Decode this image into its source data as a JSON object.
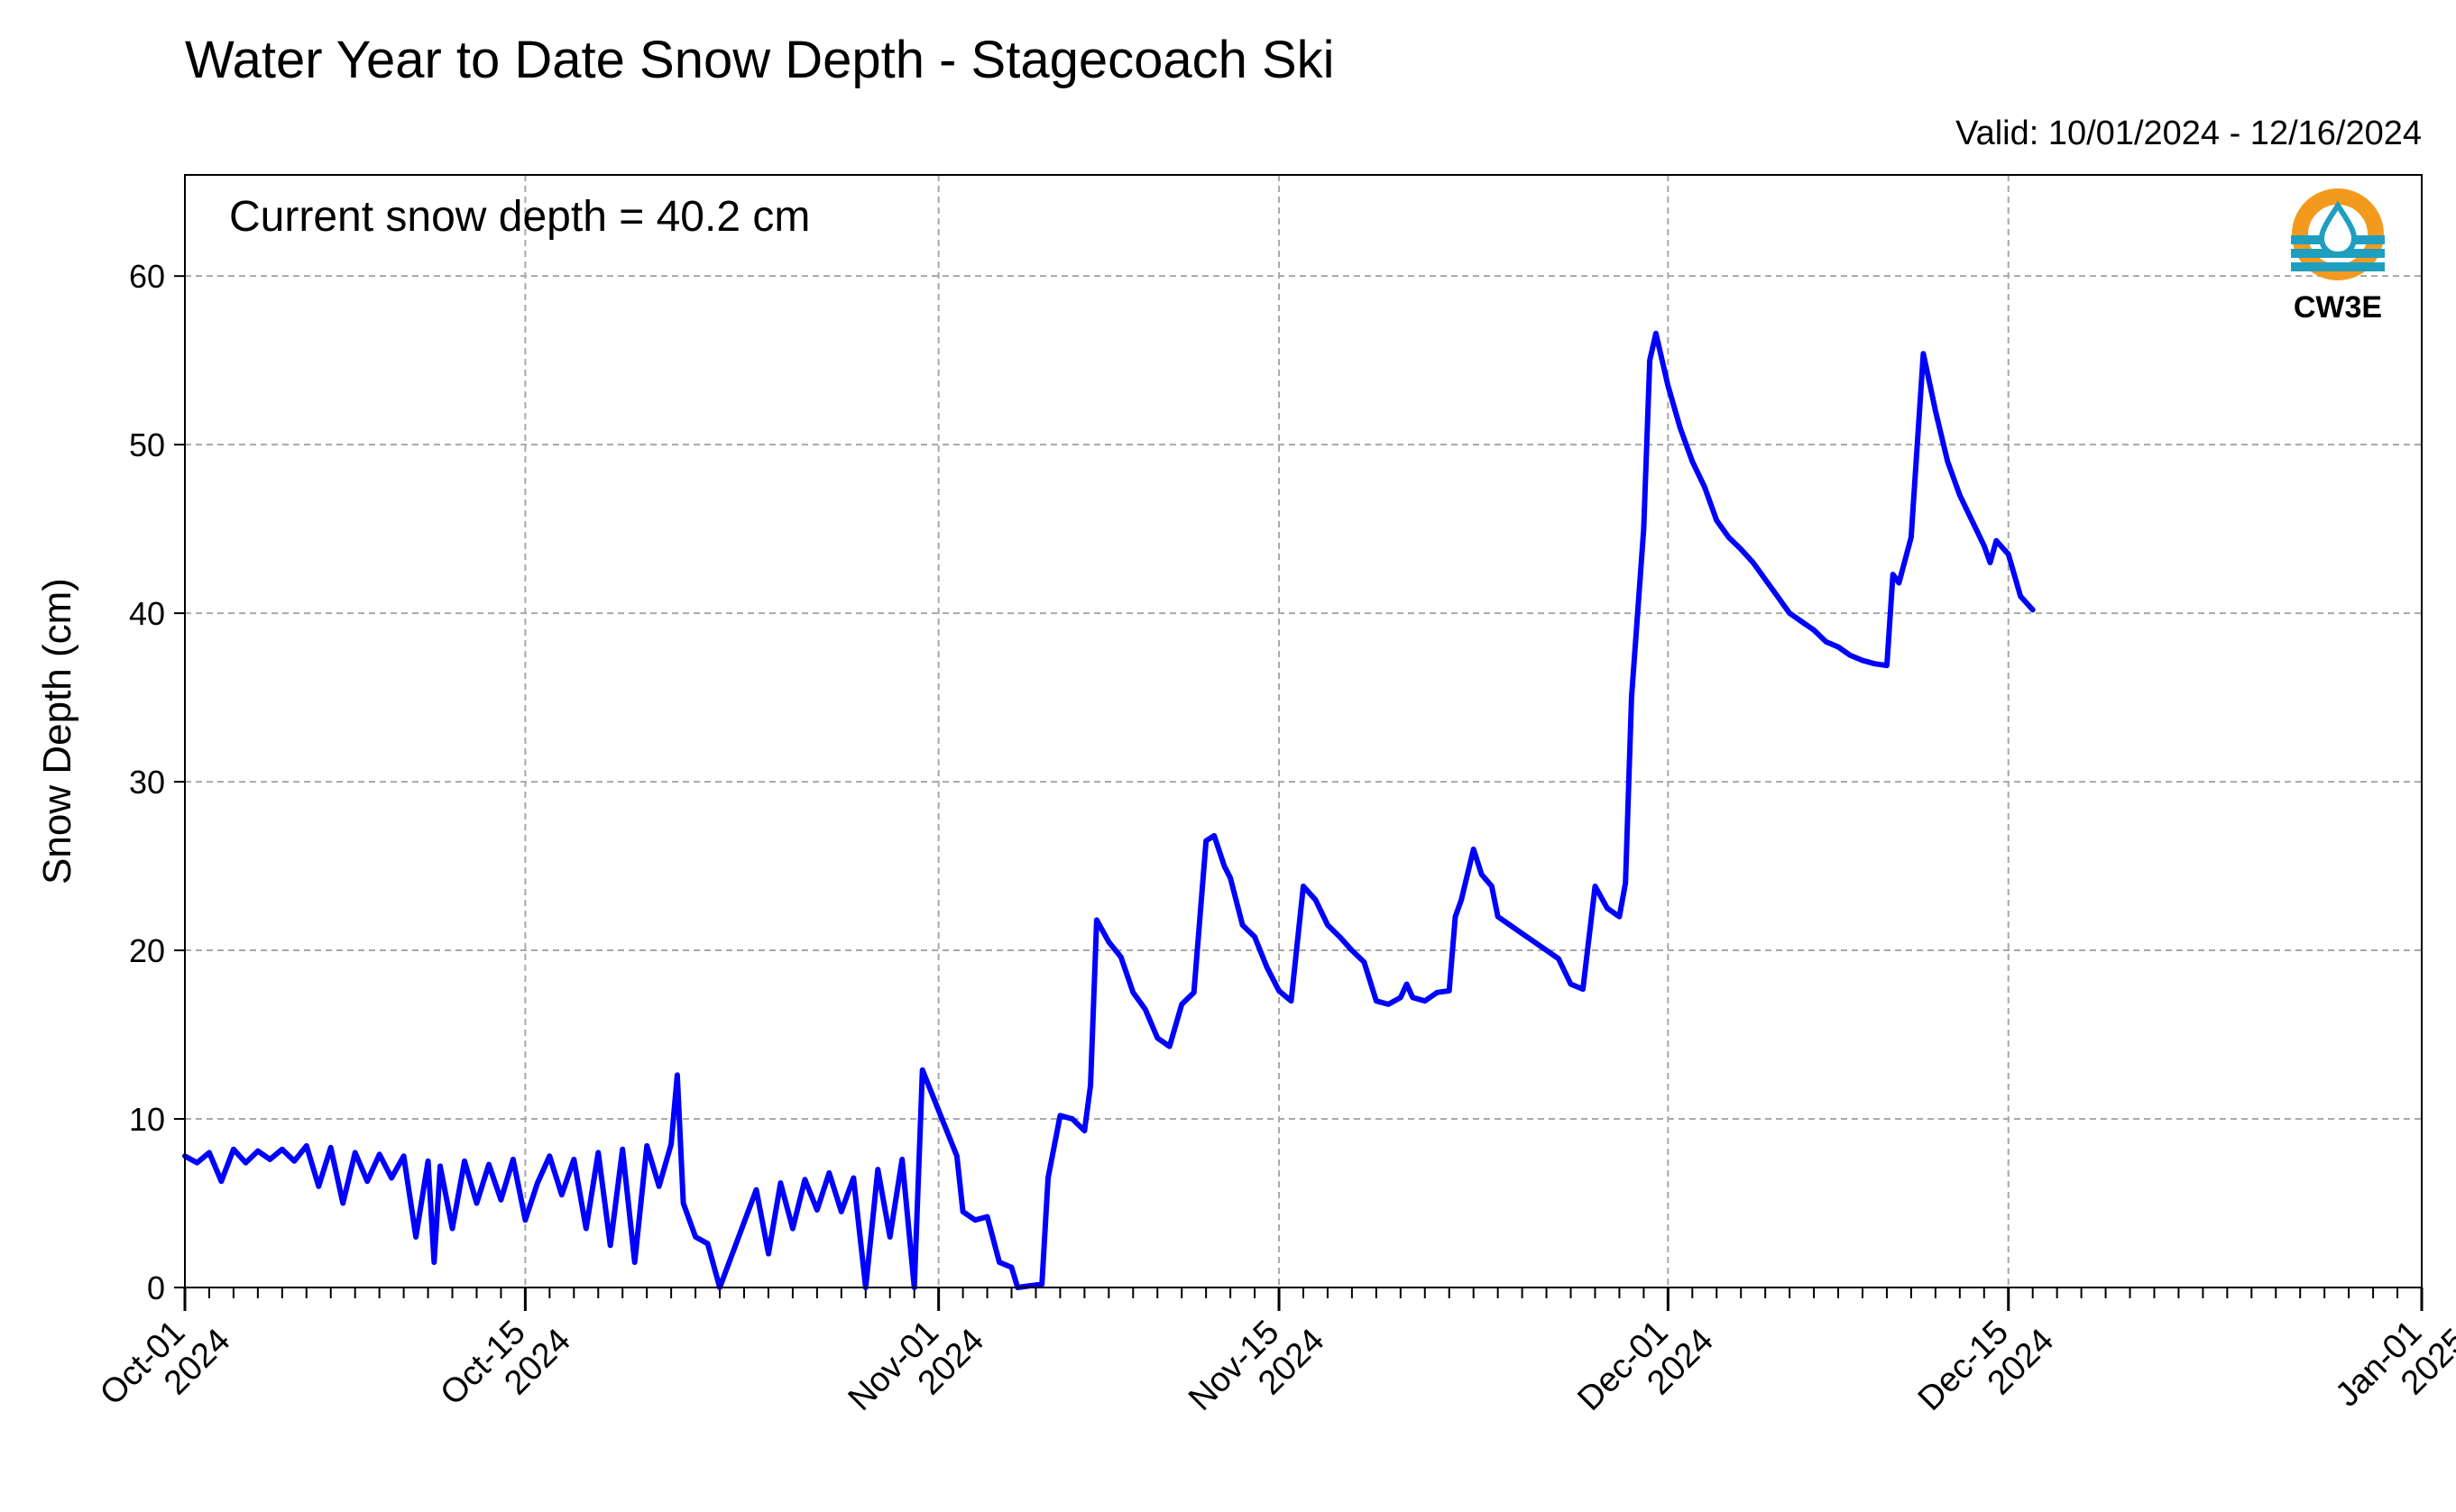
{
  "chart_data": {
    "type": "line",
    "title": "Water Year to Date Snow Depth - Stagecoach Ski",
    "subtitle": "Valid: 10/01/2024 - 12/16/2024",
    "annotation": "Current snow depth = 40.2 cm",
    "xlabel": "",
    "ylabel": "Snow Depth (cm)",
    "xlim": [
      "2024-10-01",
      "2025-01-01"
    ],
    "ylim": [
      0,
      66
    ],
    "grid": true,
    "grid_style": "dashed",
    "x_ticks": [
      {
        "date": "2024-10-01",
        "line1": "Oct-01",
        "line2": "2024"
      },
      {
        "date": "2024-10-15",
        "line1": "Oct-15",
        "line2": "2024"
      },
      {
        "date": "2024-11-01",
        "line1": "Nov-01",
        "line2": "2024"
      },
      {
        "date": "2024-11-15",
        "line1": "Nov-15",
        "line2": "2024"
      },
      {
        "date": "2024-12-01",
        "line1": "Dec-01",
        "line2": "2024"
      },
      {
        "date": "2024-12-15",
        "line1": "Dec-15",
        "line2": "2024"
      },
      {
        "date": "2025-01-01",
        "line1": "Jan-01",
        "line2": "2025"
      }
    ],
    "y_ticks": [
      0,
      10,
      20,
      30,
      40,
      50,
      60
    ],
    "series": [
      {
        "color": "#0000ff",
        "x_unit": "date",
        "points": [
          [
            "2024-10-01",
            7.8
          ],
          [
            "2024-10-01T12:00",
            7.4
          ],
          [
            "2024-10-02",
            8.0
          ],
          [
            "2024-10-02T12:00",
            6.3
          ],
          [
            "2024-10-03",
            8.2
          ],
          [
            "2024-10-03T12:00",
            7.4
          ],
          [
            "2024-10-04",
            8.1
          ],
          [
            "2024-10-04T12:00",
            7.6
          ],
          [
            "2024-10-05",
            8.2
          ],
          [
            "2024-10-05T12:00",
            7.5
          ],
          [
            "2024-10-06",
            8.4
          ],
          [
            "2024-10-06T12:00",
            6.0
          ],
          [
            "2024-10-07",
            8.3
          ],
          [
            "2024-10-07T12:00",
            5.0
          ],
          [
            "2024-10-08",
            8.0
          ],
          [
            "2024-10-08T12:00",
            6.3
          ],
          [
            "2024-10-09",
            7.9
          ],
          [
            "2024-10-09T12:00",
            6.5
          ],
          [
            "2024-10-10",
            7.8
          ],
          [
            "2024-10-10T12:00",
            3.0
          ],
          [
            "2024-10-11",
            7.5
          ],
          [
            "2024-10-11T06:00",
            1.5
          ],
          [
            "2024-10-11T12:00",
            7.2
          ],
          [
            "2024-10-12",
            3.5
          ],
          [
            "2024-10-12T12:00",
            7.5
          ],
          [
            "2024-10-13",
            5.0
          ],
          [
            "2024-10-13T12:00",
            7.3
          ],
          [
            "2024-10-14",
            5.2
          ],
          [
            "2024-10-14T12:00",
            7.6
          ],
          [
            "2024-10-15",
            4.0
          ],
          [
            "2024-10-15T12:00",
            6.2
          ],
          [
            "2024-10-16",
            7.8
          ],
          [
            "2024-10-16T12:00",
            5.5
          ],
          [
            "2024-10-17",
            7.6
          ],
          [
            "2024-10-17T12:00",
            3.5
          ],
          [
            "2024-10-18",
            8.0
          ],
          [
            "2024-10-18T12:00",
            2.5
          ],
          [
            "2024-10-19",
            8.2
          ],
          [
            "2024-10-19T12:00",
            1.5
          ],
          [
            "2024-10-20",
            8.4
          ],
          [
            "2024-10-20T12:00",
            6.0
          ],
          [
            "2024-10-21",
            8.5
          ],
          [
            "2024-10-21T06:00",
            12.6
          ],
          [
            "2024-10-21T12:00",
            5.0
          ],
          [
            "2024-10-22",
            3.0
          ],
          [
            "2024-10-22T12:00",
            2.6
          ],
          [
            "2024-10-23",
            0.0
          ],
          [
            "2024-10-24T12:00",
            5.8
          ],
          [
            "2024-10-25",
            2.0
          ],
          [
            "2024-10-25T12:00",
            6.2
          ],
          [
            "2024-10-26",
            3.5
          ],
          [
            "2024-10-26T12:00",
            6.4
          ],
          [
            "2024-10-27",
            4.6
          ],
          [
            "2024-10-27T12:00",
            6.8
          ],
          [
            "2024-10-28",
            4.5
          ],
          [
            "2024-10-28T12:00",
            6.5
          ],
          [
            "2024-10-29",
            0.0
          ],
          [
            "2024-10-29T12:00",
            7.0
          ],
          [
            "2024-10-30",
            3.0
          ],
          [
            "2024-10-30T12:00",
            7.6
          ],
          [
            "2024-10-31",
            0.0
          ],
          [
            "2024-10-31T08:00",
            12.9
          ],
          [
            "2024-11-01",
            10.5
          ],
          [
            "2024-11-01T18:00",
            7.8
          ],
          [
            "2024-11-02",
            4.5
          ],
          [
            "2024-11-02T12:00",
            4.0
          ],
          [
            "2024-11-03",
            4.2
          ],
          [
            "2024-11-03T12:00",
            1.5
          ],
          [
            "2024-11-04",
            1.2
          ],
          [
            "2024-11-04T06:00",
            0.0
          ],
          [
            "2024-11-05T06:00",
            0.2
          ],
          [
            "2024-11-05T12:00",
            6.5
          ],
          [
            "2024-11-06",
            10.2
          ],
          [
            "2024-11-06T12:00",
            10.0
          ],
          [
            "2024-11-07",
            9.3
          ],
          [
            "2024-11-07T06:00",
            12.0
          ],
          [
            "2024-11-07T12:00",
            21.8
          ],
          [
            "2024-11-08",
            20.5
          ],
          [
            "2024-11-08T12:00",
            19.6
          ],
          [
            "2024-11-09",
            17.5
          ],
          [
            "2024-11-09T12:00",
            16.5
          ],
          [
            "2024-11-10",
            14.8
          ],
          [
            "2024-11-10T12:00",
            14.3
          ],
          [
            "2024-11-11",
            16.8
          ],
          [
            "2024-11-11T12:00",
            17.5
          ],
          [
            "2024-11-12",
            26.5
          ],
          [
            "2024-11-12T08:00",
            26.8
          ],
          [
            "2024-11-12T18:00",
            25.0
          ],
          [
            "2024-11-13",
            24.3
          ],
          [
            "2024-11-13T12:00",
            21.5
          ],
          [
            "2024-11-14",
            20.8
          ],
          [
            "2024-11-14T12:00",
            19.0
          ],
          [
            "2024-11-15",
            17.6
          ],
          [
            "2024-11-15T12:00",
            17.0
          ],
          [
            "2024-11-16",
            23.8
          ],
          [
            "2024-11-16T12:00",
            23.0
          ],
          [
            "2024-11-17",
            21.5
          ],
          [
            "2024-11-17T12:00",
            20.8
          ],
          [
            "2024-11-18",
            20.0
          ],
          [
            "2024-11-18T12:00",
            19.3
          ],
          [
            "2024-11-19",
            17.0
          ],
          [
            "2024-11-19T12:00",
            16.8
          ],
          [
            "2024-11-20",
            17.2
          ],
          [
            "2024-11-20T06:00",
            18.0
          ],
          [
            "2024-11-20T12:00",
            17.2
          ],
          [
            "2024-11-21",
            17.0
          ],
          [
            "2024-11-21T12:00",
            17.5
          ],
          [
            "2024-11-22",
            17.6
          ],
          [
            "2024-11-22T06:00",
            22.0
          ],
          [
            "2024-11-22T12:00",
            23.0
          ],
          [
            "2024-11-23",
            26.0
          ],
          [
            "2024-11-23T08:00",
            24.5
          ],
          [
            "2024-11-23T18:00",
            23.8
          ],
          [
            "2024-11-24",
            22.0
          ],
          [
            "2024-11-24T12:00",
            21.5
          ],
          [
            "2024-11-25",
            21.0
          ],
          [
            "2024-11-25T12:00",
            20.5
          ],
          [
            "2024-11-26",
            20.0
          ],
          [
            "2024-11-26T12:00",
            19.5
          ],
          [
            "2024-11-27",
            18.0
          ],
          [
            "2024-11-27T12:00",
            17.7
          ],
          [
            "2024-11-28",
            23.8
          ],
          [
            "2024-11-28T12:00",
            22.5
          ],
          [
            "2024-11-29",
            22.0
          ],
          [
            "2024-11-29T06:00",
            24.0
          ],
          [
            "2024-11-29T12:00",
            35.0
          ],
          [
            "2024-11-30",
            45.0
          ],
          [
            "2024-11-30T06:00",
            55.0
          ],
          [
            "2024-11-30T12:00",
            56.6
          ],
          [
            "2024-12-01",
            53.5
          ],
          [
            "2024-12-01T12:00",
            51.0
          ],
          [
            "2024-12-02",
            49.0
          ],
          [
            "2024-12-02T12:00",
            47.5
          ],
          [
            "2024-12-03",
            45.5
          ],
          [
            "2024-12-03T12:00",
            44.5
          ],
          [
            "2024-12-04",
            43.8
          ],
          [
            "2024-12-04T12:00",
            43.0
          ],
          [
            "2024-12-05",
            42.0
          ],
          [
            "2024-12-05T12:00",
            41.0
          ],
          [
            "2024-12-06",
            40.0
          ],
          [
            "2024-12-06T12:00",
            39.5
          ],
          [
            "2024-12-07",
            39.0
          ],
          [
            "2024-12-07T12:00",
            38.3
          ],
          [
            "2024-12-08",
            38.0
          ],
          [
            "2024-12-08T12:00",
            37.5
          ],
          [
            "2024-12-09",
            37.2
          ],
          [
            "2024-12-09T12:00",
            37.0
          ],
          [
            "2024-12-10",
            36.9
          ],
          [
            "2024-12-10T06:00",
            42.3
          ],
          [
            "2024-12-10T12:00",
            41.8
          ],
          [
            "2024-12-11",
            44.5
          ],
          [
            "2024-12-11T06:00",
            50.0
          ],
          [
            "2024-12-11T12:00",
            55.4
          ],
          [
            "2024-12-12",
            52.0
          ],
          [
            "2024-12-12T12:00",
            49.0
          ],
          [
            "2024-12-13",
            47.0
          ],
          [
            "2024-12-13T12:00",
            45.5
          ],
          [
            "2024-12-14",
            44.0
          ],
          [
            "2024-12-14T06:00",
            43.0
          ],
          [
            "2024-12-14T12:00",
            44.3
          ],
          [
            "2024-12-15",
            43.5
          ],
          [
            "2024-12-15T12:00",
            41.0
          ],
          [
            "2024-12-16",
            40.2
          ]
        ]
      }
    ]
  },
  "logo": {
    "text": "CW3E",
    "ring_color": "#f39a1e",
    "wave_color": "#1e9fc0"
  }
}
